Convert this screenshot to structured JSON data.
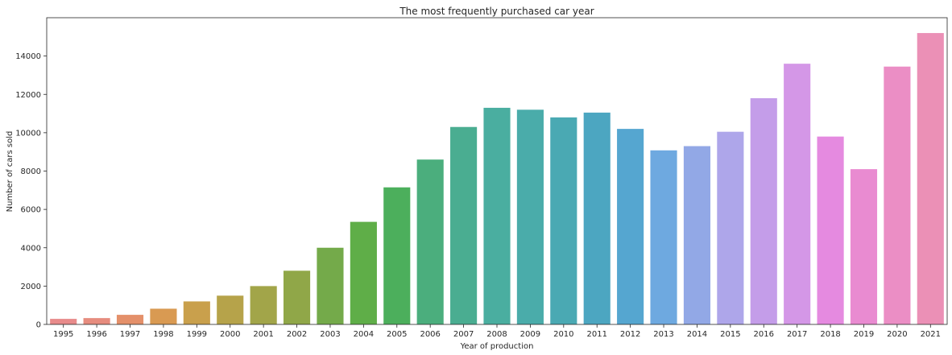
{
  "chart_data": {
    "type": "bar",
    "title": "The most frequently purchased car year",
    "xlabel": "Year of production",
    "ylabel": "Number of cars sold",
    "categories": [
      "1995",
      "1996",
      "1997",
      "1998",
      "1999",
      "2000",
      "2001",
      "2002",
      "2003",
      "2004",
      "2005",
      "2006",
      "2007",
      "2008",
      "2009",
      "2010",
      "2011",
      "2012",
      "2013",
      "2014",
      "2015",
      "2016",
      "2017",
      "2018",
      "2019",
      "2020",
      "2021"
    ],
    "values": [
      290,
      330,
      500,
      820,
      1200,
      1500,
      2000,
      2800,
      4000,
      5350,
      7150,
      8600,
      10300,
      11300,
      11200,
      10800,
      11050,
      10200,
      9080,
      9300,
      10050,
      11800,
      13600,
      9800,
      8100,
      13450,
      15200
    ],
    "colors": [
      "#e88b8b",
      "#e68c7e",
      "#e4906a",
      "#d99a52",
      "#c9a04c",
      "#b6a34a",
      "#a2a549",
      "#90a748",
      "#74aa4a",
      "#5fae48",
      "#4caf5c",
      "#4bae7d",
      "#4aad91",
      "#4aaea0",
      "#4aacaa",
      "#4aa9b3",
      "#4ca6c1",
      "#55a6d0",
      "#6ea9e0",
      "#92a8e6",
      "#aea6ea",
      "#c49de9",
      "#d497e7",
      "#e58ae0",
      "#e98bd1",
      "#eb8ec5",
      "#eb90b6"
    ],
    "ylim": [
      0,
      16000
    ],
    "yticks": [
      0,
      2000,
      4000,
      6000,
      8000,
      10000,
      12000,
      14000
    ],
    "ytick_labels": [
      "0",
      "2000",
      "4000",
      "6000",
      "8000",
      "10000",
      "12000",
      "14000"
    ],
    "grid": false
  }
}
